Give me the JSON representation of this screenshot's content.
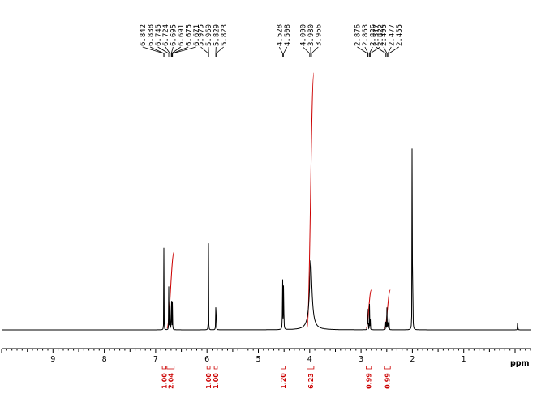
{
  "chart_data": {
    "type": "line",
    "xlabel": "ppm",
    "xlim": [
      10.0,
      -0.3
    ],
    "x_ticks": [
      "9",
      "8",
      "7",
      "6",
      "5",
      "4",
      "3",
      "2",
      "1"
    ],
    "peak_label_groups": [
      {
        "labels": [
          "6.842",
          "6.838",
          "6.745",
          "6.724",
          "6.695",
          "6.691",
          "6.675",
          "6.671"
        ],
        "peaks": [
          6.842,
          6.838,
          6.745,
          6.724,
          6.695,
          6.691,
          6.675,
          6.671
        ]
      },
      {
        "labels": [
          "5.975",
          "5.969",
          "5.829",
          "5.823"
        ],
        "peaks": [
          5.975,
          5.969,
          5.829,
          5.823
        ]
      },
      {
        "labels": [
          "4.528",
          "4.508"
        ],
        "peaks": [
          4.528,
          4.508
        ]
      },
      {
        "labels": [
          "4.000",
          "3.980",
          "3.966"
        ],
        "peaks": [
          4.0,
          3.98,
          3.966
        ]
      },
      {
        "labels": [
          "2.876",
          "2.863",
          "2.836",
          "2.822"
        ],
        "peaks": [
          2.876,
          2.863,
          2.836,
          2.822
        ]
      },
      {
        "labels": [
          "2.517",
          "2.495",
          "2.477",
          "2.455"
        ],
        "peaks": [
          2.517,
          2.495,
          2.477,
          2.455
        ]
      }
    ],
    "signals": [
      {
        "ppm": 6.84,
        "height": 0.325,
        "width": 0.004
      },
      {
        "ppm": 6.724,
        "height": 0.19,
        "width": 0.004
      },
      {
        "ppm": 6.745,
        "height": 0.18,
        "width": 0.004
      },
      {
        "ppm": 6.693,
        "height": 0.28,
        "width": 0.004
      },
      {
        "ppm": 6.673,
        "height": 0.17,
        "width": 0.004
      },
      {
        "ppm": 5.972,
        "height": 0.335,
        "width": 0.004
      },
      {
        "ppm": 5.826,
        "height": 0.335,
        "width": 0.004
      },
      {
        "ppm": 4.528,
        "height": 0.25,
        "width": 0.006
      },
      {
        "ppm": 4.508,
        "height": 0.255,
        "width": 0.006
      },
      {
        "ppm": 3.98,
        "height": 0.2,
        "width": 0.05
      },
      {
        "ppm": 3.98,
        "height": 0.06,
        "width": 0.11
      },
      {
        "ppm": 2.876,
        "height": 0.085,
        "width": 0.004
      },
      {
        "ppm": 2.863,
        "height": 0.1,
        "width": 0.004
      },
      {
        "ppm": 2.836,
        "height": 0.095,
        "width": 0.004
      },
      {
        "ppm": 2.822,
        "height": 0.08,
        "width": 0.004
      },
      {
        "ppm": 2.517,
        "height": 0.09,
        "width": 0.004
      },
      {
        "ppm": 2.495,
        "height": 0.11,
        "width": 0.004
      },
      {
        "ppm": 2.477,
        "height": 0.1,
        "width": 0.004
      },
      {
        "ppm": 2.455,
        "height": 0.08,
        "width": 0.004
      },
      {
        "ppm": 2.005,
        "height": 1.0,
        "width": 0.004
      },
      {
        "ppm": 1.995,
        "height": 0.66,
        "width": 0.004
      },
      {
        "ppm": -0.05,
        "height": 0.11,
        "width": 0.003
      }
    ],
    "integrals": [
      {
        "label": "1.00",
        "from": 6.87,
        "to": 6.8,
        "rise": 0.0
      },
      {
        "label": "2.04",
        "from": 6.78,
        "to": 6.64,
        "rise": 0.3
      },
      {
        "label": "1.00",
        "from": 6.0,
        "to": 5.94,
        "rise": 0.0
      },
      {
        "label": "1.00",
        "from": 5.86,
        "to": 5.8,
        "rise": 0.0
      },
      {
        "label": "1.20",
        "from": 4.56,
        "to": 4.48,
        "rise": 0.0
      },
      {
        "label": "6.23",
        "from": 4.05,
        "to": 3.92,
        "rise": 1.0
      },
      {
        "label": "0.99",
        "from": 2.9,
        "to": 2.8,
        "rise": 0.15
      },
      {
        "label": "0.99",
        "from": 2.54,
        "to": 2.43,
        "rise": 0.15
      }
    ],
    "colors": {
      "spectrum": "#000000",
      "integral": "#cc0000",
      "axis": "#000000"
    }
  }
}
